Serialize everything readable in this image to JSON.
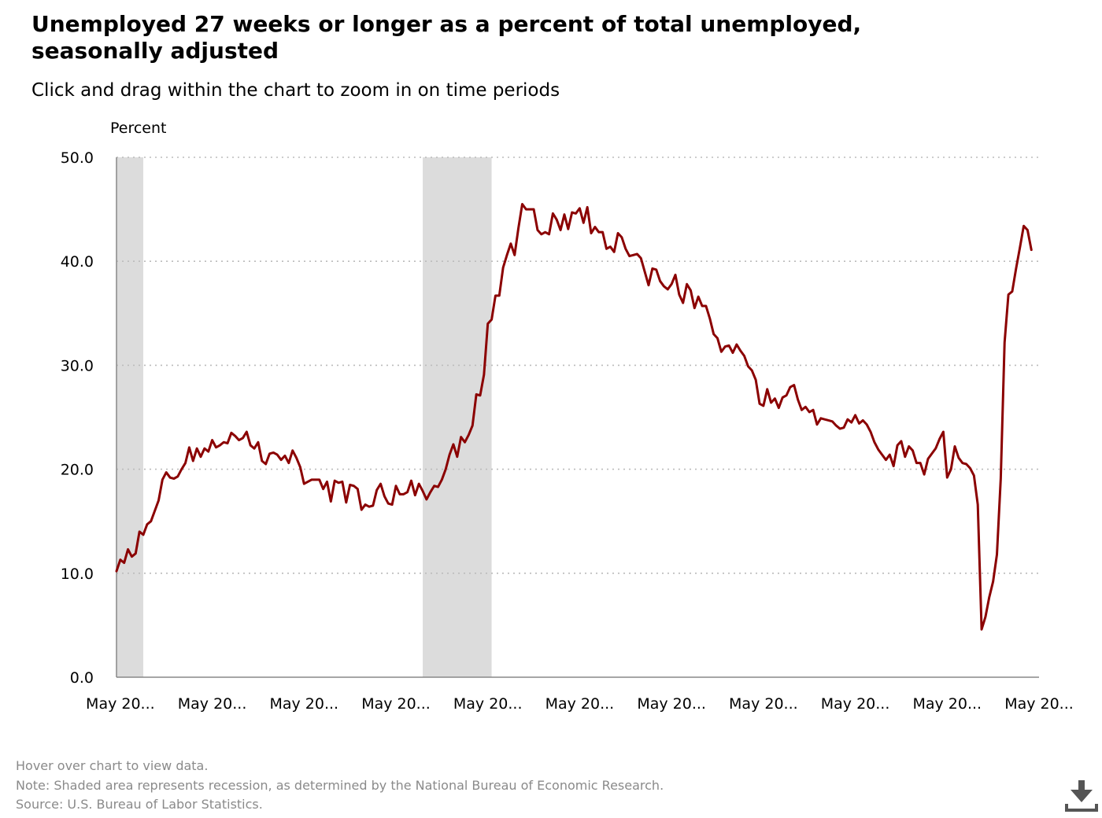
{
  "title": "Unemployed 27 weeks or longer as a percent of total unemployed, seasonally adjusted",
  "subtitle": "Click and drag within the chart to zoom in on time periods",
  "notes": {
    "hover": "Hover over chart to view data.",
    "recession": "Note: Shaded area represents recession, as determined by the National Bureau of Economic Research.",
    "source": "Source: U.S. Bureau of Labor Statistics."
  },
  "download_icon": "download-icon",
  "colors": {
    "line": "#8b0000",
    "recession": "#dcdcdc",
    "grid": "#bbbbbb",
    "note_text": "#8a8a8a"
  },
  "chart_data": {
    "type": "line",
    "ylabel": "Percent",
    "ylim": [
      0,
      50
    ],
    "yticks": [
      "0.0",
      "10.0",
      "20.0",
      "30.0",
      "40.0",
      "50.0"
    ],
    "xlim": [
      "2001-04",
      "2021-05"
    ],
    "xticks": [
      {
        "date": "2001-05",
        "label": "May 20..."
      },
      {
        "date": "2003-05",
        "label": "May 20..."
      },
      {
        "date": "2005-05",
        "label": "May 20..."
      },
      {
        "date": "2007-05",
        "label": "May 20..."
      },
      {
        "date": "2009-05",
        "label": "May 20..."
      },
      {
        "date": "2011-05",
        "label": "May 20..."
      },
      {
        "date": "2013-05",
        "label": "May 20..."
      },
      {
        "date": "2015-05",
        "label": "May 20..."
      },
      {
        "date": "2017-05",
        "label": "May 20..."
      },
      {
        "date": "2019-05",
        "label": "May 20..."
      },
      {
        "date": "2021-05",
        "label": "May 20..."
      }
    ],
    "grid": true,
    "recessions": [
      {
        "start": "2001-04",
        "end": "2001-11"
      },
      {
        "start": "2007-12",
        "end": "2009-06"
      }
    ],
    "series": [
      {
        "points": [
          [
            "2001-04",
            10.2
          ],
          [
            "2001-05",
            11.3
          ],
          [
            "2001-06",
            11.0
          ],
          [
            "2001-07",
            12.3
          ],
          [
            "2001-08",
            11.6
          ],
          [
            "2001-09",
            11.9
          ],
          [
            "2001-10",
            14.0
          ],
          [
            "2001-11",
            13.7
          ],
          [
            "2001-12",
            14.7
          ],
          [
            "2002-01",
            15.0
          ],
          [
            "2002-02",
            16.0
          ],
          [
            "2002-03",
            17.0
          ],
          [
            "2002-04",
            19.0
          ],
          [
            "2002-05",
            19.7
          ],
          [
            "2002-06",
            19.2
          ],
          [
            "2002-07",
            19.1
          ],
          [
            "2002-08",
            19.3
          ],
          [
            "2002-09",
            20.0
          ],
          [
            "2002-10",
            20.6
          ],
          [
            "2002-11",
            22.1
          ],
          [
            "2002-12",
            20.8
          ],
          [
            "2003-01",
            22.0
          ],
          [
            "2003-02",
            21.2
          ],
          [
            "2003-03",
            22.0
          ],
          [
            "2003-04",
            21.7
          ],
          [
            "2003-05",
            22.8
          ],
          [
            "2003-06",
            22.1
          ],
          [
            "2003-07",
            22.3
          ],
          [
            "2003-08",
            22.6
          ],
          [
            "2003-09",
            22.5
          ],
          [
            "2003-10",
            23.5
          ],
          [
            "2003-11",
            23.2
          ],
          [
            "2003-12",
            22.8
          ],
          [
            "2004-01",
            23.0
          ],
          [
            "2004-02",
            23.6
          ],
          [
            "2004-03",
            22.3
          ],
          [
            "2004-04",
            22.0
          ],
          [
            "2004-05",
            22.6
          ],
          [
            "2004-06",
            20.8
          ],
          [
            "2004-07",
            20.5
          ],
          [
            "2004-08",
            21.5
          ],
          [
            "2004-09",
            21.6
          ],
          [
            "2004-10",
            21.4
          ],
          [
            "2004-11",
            20.9
          ],
          [
            "2004-12",
            21.3
          ],
          [
            "2005-01",
            20.6
          ],
          [
            "2005-02",
            21.8
          ],
          [
            "2005-03",
            21.1
          ],
          [
            "2005-04",
            20.2
          ],
          [
            "2005-05",
            18.6
          ],
          [
            "2005-06",
            18.8
          ],
          [
            "2005-07",
            19.0
          ],
          [
            "2005-08",
            19.0
          ],
          [
            "2005-09",
            19.0
          ],
          [
            "2005-10",
            18.1
          ],
          [
            "2005-11",
            18.8
          ],
          [
            "2005-12",
            16.9
          ],
          [
            "2006-01",
            18.9
          ],
          [
            "2006-02",
            18.7
          ],
          [
            "2006-03",
            18.8
          ],
          [
            "2006-04",
            16.8
          ],
          [
            "2006-05",
            18.5
          ],
          [
            "2006-06",
            18.4
          ],
          [
            "2006-07",
            18.1
          ],
          [
            "2006-08",
            16.1
          ],
          [
            "2006-09",
            16.6
          ],
          [
            "2006-10",
            16.4
          ],
          [
            "2006-11",
            16.5
          ],
          [
            "2006-12",
            18.0
          ],
          [
            "2007-01",
            18.6
          ],
          [
            "2007-02",
            17.4
          ],
          [
            "2007-03",
            16.7
          ],
          [
            "2007-04",
            16.6
          ],
          [
            "2007-05",
            18.4
          ],
          [
            "2007-06",
            17.6
          ],
          [
            "2007-07",
            17.6
          ],
          [
            "2007-08",
            17.8
          ],
          [
            "2007-09",
            18.9
          ],
          [
            "2007-10",
            17.5
          ],
          [
            "2007-11",
            18.6
          ],
          [
            "2007-12",
            17.9
          ],
          [
            "2008-01",
            17.1
          ],
          [
            "2008-02",
            17.8
          ],
          [
            "2008-03",
            18.4
          ],
          [
            "2008-04",
            18.3
          ],
          [
            "2008-05",
            19.0
          ],
          [
            "2008-06",
            20.0
          ],
          [
            "2008-07",
            21.4
          ],
          [
            "2008-08",
            22.4
          ],
          [
            "2008-09",
            21.2
          ],
          [
            "2008-10",
            23.1
          ],
          [
            "2008-11",
            22.6
          ],
          [
            "2008-12",
            23.3
          ],
          [
            "2009-01",
            24.2
          ],
          [
            "2009-02",
            27.2
          ],
          [
            "2009-03",
            27.1
          ],
          [
            "2009-04",
            29.1
          ],
          [
            "2009-05",
            34.0
          ],
          [
            "2009-06",
            34.4
          ],
          [
            "2009-07",
            36.7
          ],
          [
            "2009-08",
            36.7
          ],
          [
            "2009-09",
            39.4
          ],
          [
            "2009-10",
            40.6
          ],
          [
            "2009-11",
            41.7
          ],
          [
            "2009-12",
            40.6
          ],
          [
            "2010-01",
            43.2
          ],
          [
            "2010-02",
            45.5
          ],
          [
            "2010-03",
            45.0
          ],
          [
            "2010-04",
            45.0
          ],
          [
            "2010-05",
            45.0
          ],
          [
            "2010-06",
            43.0
          ],
          [
            "2010-07",
            42.6
          ],
          [
            "2010-08",
            42.8
          ],
          [
            "2010-09",
            42.6
          ],
          [
            "2010-10",
            44.6
          ],
          [
            "2010-11",
            44.0
          ],
          [
            "2010-12",
            43.0
          ],
          [
            "2011-01",
            44.5
          ],
          [
            "2011-02",
            43.1
          ],
          [
            "2011-03",
            44.7
          ],
          [
            "2011-04",
            44.6
          ],
          [
            "2011-05",
            45.1
          ],
          [
            "2011-06",
            43.7
          ],
          [
            "2011-07",
            45.2
          ],
          [
            "2011-08",
            42.7
          ],
          [
            "2011-09",
            43.3
          ],
          [
            "2011-10",
            42.8
          ],
          [
            "2011-11",
            42.8
          ],
          [
            "2011-12",
            41.2
          ],
          [
            "2012-01",
            41.4
          ],
          [
            "2012-02",
            40.9
          ],
          [
            "2012-03",
            42.7
          ],
          [
            "2012-04",
            42.3
          ],
          [
            "2012-05",
            41.2
          ],
          [
            "2012-06",
            40.5
          ],
          [
            "2012-07",
            40.6
          ],
          [
            "2012-08",
            40.7
          ],
          [
            "2012-09",
            40.3
          ],
          [
            "2012-10",
            39.0
          ],
          [
            "2012-11",
            37.7
          ],
          [
            "2012-12",
            39.3
          ],
          [
            "2013-01",
            39.2
          ],
          [
            "2013-02",
            38.1
          ],
          [
            "2013-03",
            37.6
          ],
          [
            "2013-04",
            37.3
          ],
          [
            "2013-05",
            37.8
          ],
          [
            "2013-06",
            38.7
          ],
          [
            "2013-07",
            36.8
          ],
          [
            "2013-08",
            36.0
          ],
          [
            "2013-09",
            37.8
          ],
          [
            "2013-10",
            37.2
          ],
          [
            "2013-11",
            35.5
          ],
          [
            "2013-12",
            36.6
          ],
          [
            "2014-01",
            35.7
          ],
          [
            "2014-02",
            35.7
          ],
          [
            "2014-03",
            34.5
          ],
          [
            "2014-04",
            33.0
          ],
          [
            "2014-05",
            32.6
          ],
          [
            "2014-06",
            31.3
          ],
          [
            "2014-07",
            31.8
          ],
          [
            "2014-08",
            31.9
          ],
          [
            "2014-09",
            31.2
          ],
          [
            "2014-10",
            32.0
          ],
          [
            "2014-11",
            31.4
          ],
          [
            "2014-12",
            30.9
          ],
          [
            "2015-01",
            29.9
          ],
          [
            "2015-02",
            29.5
          ],
          [
            "2015-03",
            28.6
          ],
          [
            "2015-04",
            26.3
          ],
          [
            "2015-05",
            26.1
          ],
          [
            "2015-06",
            27.7
          ],
          [
            "2015-07",
            26.4
          ],
          [
            "2015-08",
            26.8
          ],
          [
            "2015-09",
            25.9
          ],
          [
            "2015-10",
            26.9
          ],
          [
            "2015-11",
            27.1
          ],
          [
            "2015-12",
            27.9
          ],
          [
            "2016-01",
            28.1
          ],
          [
            "2016-02",
            26.7
          ],
          [
            "2016-03",
            25.7
          ],
          [
            "2016-04",
            26.0
          ],
          [
            "2016-05",
            25.5
          ],
          [
            "2016-06",
            25.7
          ],
          [
            "2016-07",
            24.3
          ],
          [
            "2016-08",
            24.9
          ],
          [
            "2016-09",
            24.8
          ],
          [
            "2016-10",
            24.7
          ],
          [
            "2016-11",
            24.6
          ],
          [
            "2016-12",
            24.2
          ],
          [
            "2017-01",
            23.9
          ],
          [
            "2017-02",
            24.0
          ],
          [
            "2017-03",
            24.8
          ],
          [
            "2017-04",
            24.5
          ],
          [
            "2017-05",
            25.2
          ],
          [
            "2017-06",
            24.4
          ],
          [
            "2017-07",
            24.7
          ],
          [
            "2017-08",
            24.3
          ],
          [
            "2017-09",
            23.6
          ],
          [
            "2017-10",
            22.6
          ],
          [
            "2017-11",
            21.9
          ],
          [
            "2017-12",
            21.4
          ],
          [
            "2018-01",
            20.9
          ],
          [
            "2018-02",
            21.4
          ],
          [
            "2018-03",
            20.3
          ],
          [
            "2018-04",
            22.3
          ],
          [
            "2018-05",
            22.7
          ],
          [
            "2018-06",
            21.2
          ],
          [
            "2018-07",
            22.2
          ],
          [
            "2018-08",
            21.8
          ],
          [
            "2018-09",
            20.6
          ],
          [
            "2018-10",
            20.6
          ],
          [
            "2018-11",
            19.5
          ],
          [
            "2018-12",
            21.0
          ],
          [
            "2019-01",
            21.5
          ],
          [
            "2019-02",
            22.0
          ],
          [
            "2019-03",
            22.9
          ],
          [
            "2019-04",
            23.6
          ],
          [
            "2019-05",
            19.2
          ],
          [
            "2019-06",
            20.0
          ],
          [
            "2019-07",
            22.2
          ],
          [
            "2019-08",
            21.1
          ],
          [
            "2019-09",
            20.6
          ],
          [
            "2019-10",
            20.5
          ],
          [
            "2019-11",
            20.1
          ],
          [
            "2019-12",
            19.4
          ],
          [
            "2020-01",
            16.6
          ],
          [
            "2020-02",
            4.6
          ],
          [
            "2020-03",
            5.8
          ],
          [
            "2020-04",
            7.7
          ],
          [
            "2020-05",
            9.2
          ],
          [
            "2020-06",
            11.8
          ],
          [
            "2020-07",
            19.1
          ],
          [
            "2020-08",
            32.2
          ],
          [
            "2020-09",
            36.8
          ],
          [
            "2020-10",
            37.1
          ],
          [
            "2020-11",
            39.3
          ],
          [
            "2020-12",
            41.3
          ],
          [
            "2021-01",
            43.4
          ],
          [
            "2021-02",
            43.0
          ],
          [
            "2021-03",
            41.1
          ]
        ]
      }
    ]
  }
}
